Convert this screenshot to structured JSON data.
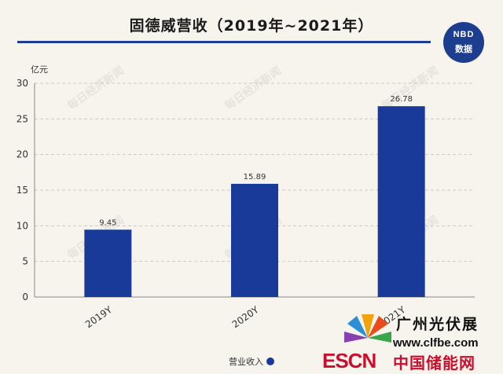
{
  "header": {
    "title": "固德威营收（2019年~2021年）"
  },
  "brand": {
    "line1": "NBD",
    "line2": "数据"
  },
  "watermark": {
    "text": "每日经济新闻"
  },
  "legend": {
    "label": "营业收入"
  },
  "colors": {
    "bar": "#1a3a9a",
    "title_rule": "#1d3d8f",
    "background": "#f7f4ee"
  },
  "overlay": {
    "cn_title": "广州光伏展",
    "url": "www.clfbe.com",
    "escn": "ESCN",
    "cn_sub": "中国储能网"
  },
  "chart_data": {
    "type": "bar",
    "title": "固德威营收（2019年~2021年）",
    "ylabel": "亿元",
    "xlabel": "",
    "categories": [
      "2019Y",
      "2020Y",
      "2021Y"
    ],
    "series": [
      {
        "name": "营业收入",
        "values": [
          9.45,
          15.89,
          26.78
        ]
      }
    ],
    "value_labels": [
      "9.45",
      "15.89",
      "26.78"
    ],
    "ylim": [
      0,
      30
    ],
    "yticks": [
      0,
      5,
      10,
      15,
      20,
      25,
      30
    ],
    "grid": true,
    "legend_position": "bottom"
  }
}
